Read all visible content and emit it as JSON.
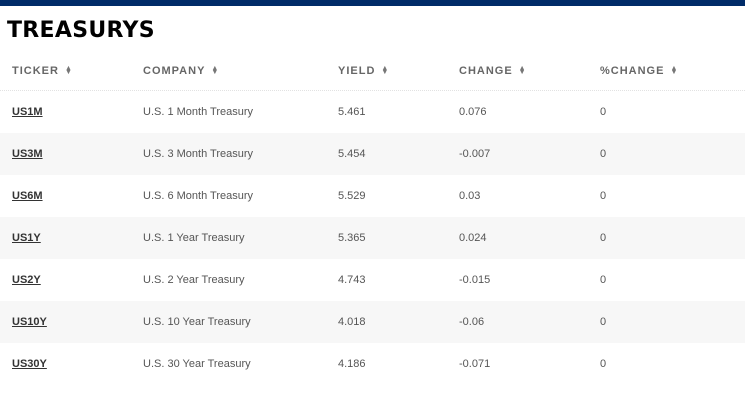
{
  "title": "TREASURYS",
  "colors": {
    "top_bar": "#002b68",
    "alt_row": "#f7f7f7"
  },
  "columns": [
    "TICKER",
    "COMPANY",
    "YIELD",
    "CHANGE",
    "%CHANGE"
  ],
  "rows": [
    {
      "ticker": "US1M",
      "company": "U.S. 1 Month Treasury",
      "yield": "5.461",
      "change": "0.076",
      "pct": "0"
    },
    {
      "ticker": "US3M",
      "company": "U.S. 3 Month Treasury",
      "yield": "5.454",
      "change": "-0.007",
      "pct": "0"
    },
    {
      "ticker": "US6M",
      "company": "U.S. 6 Month Treasury",
      "yield": "5.529",
      "change": "0.03",
      "pct": "0"
    },
    {
      "ticker": "US1Y",
      "company": "U.S. 1 Year Treasury",
      "yield": "5.365",
      "change": "0.024",
      "pct": "0"
    },
    {
      "ticker": "US2Y",
      "company": "U.S. 2 Year Treasury",
      "yield": "4.743",
      "change": "-0.015",
      "pct": "0"
    },
    {
      "ticker": "US10Y",
      "company": "U.S. 10 Year Treasury",
      "yield": "4.018",
      "change": "-0.06",
      "pct": "0"
    },
    {
      "ticker": "US30Y",
      "company": "U.S. 30 Year Treasury",
      "yield": "4.186",
      "change": "-0.071",
      "pct": "0"
    }
  ]
}
